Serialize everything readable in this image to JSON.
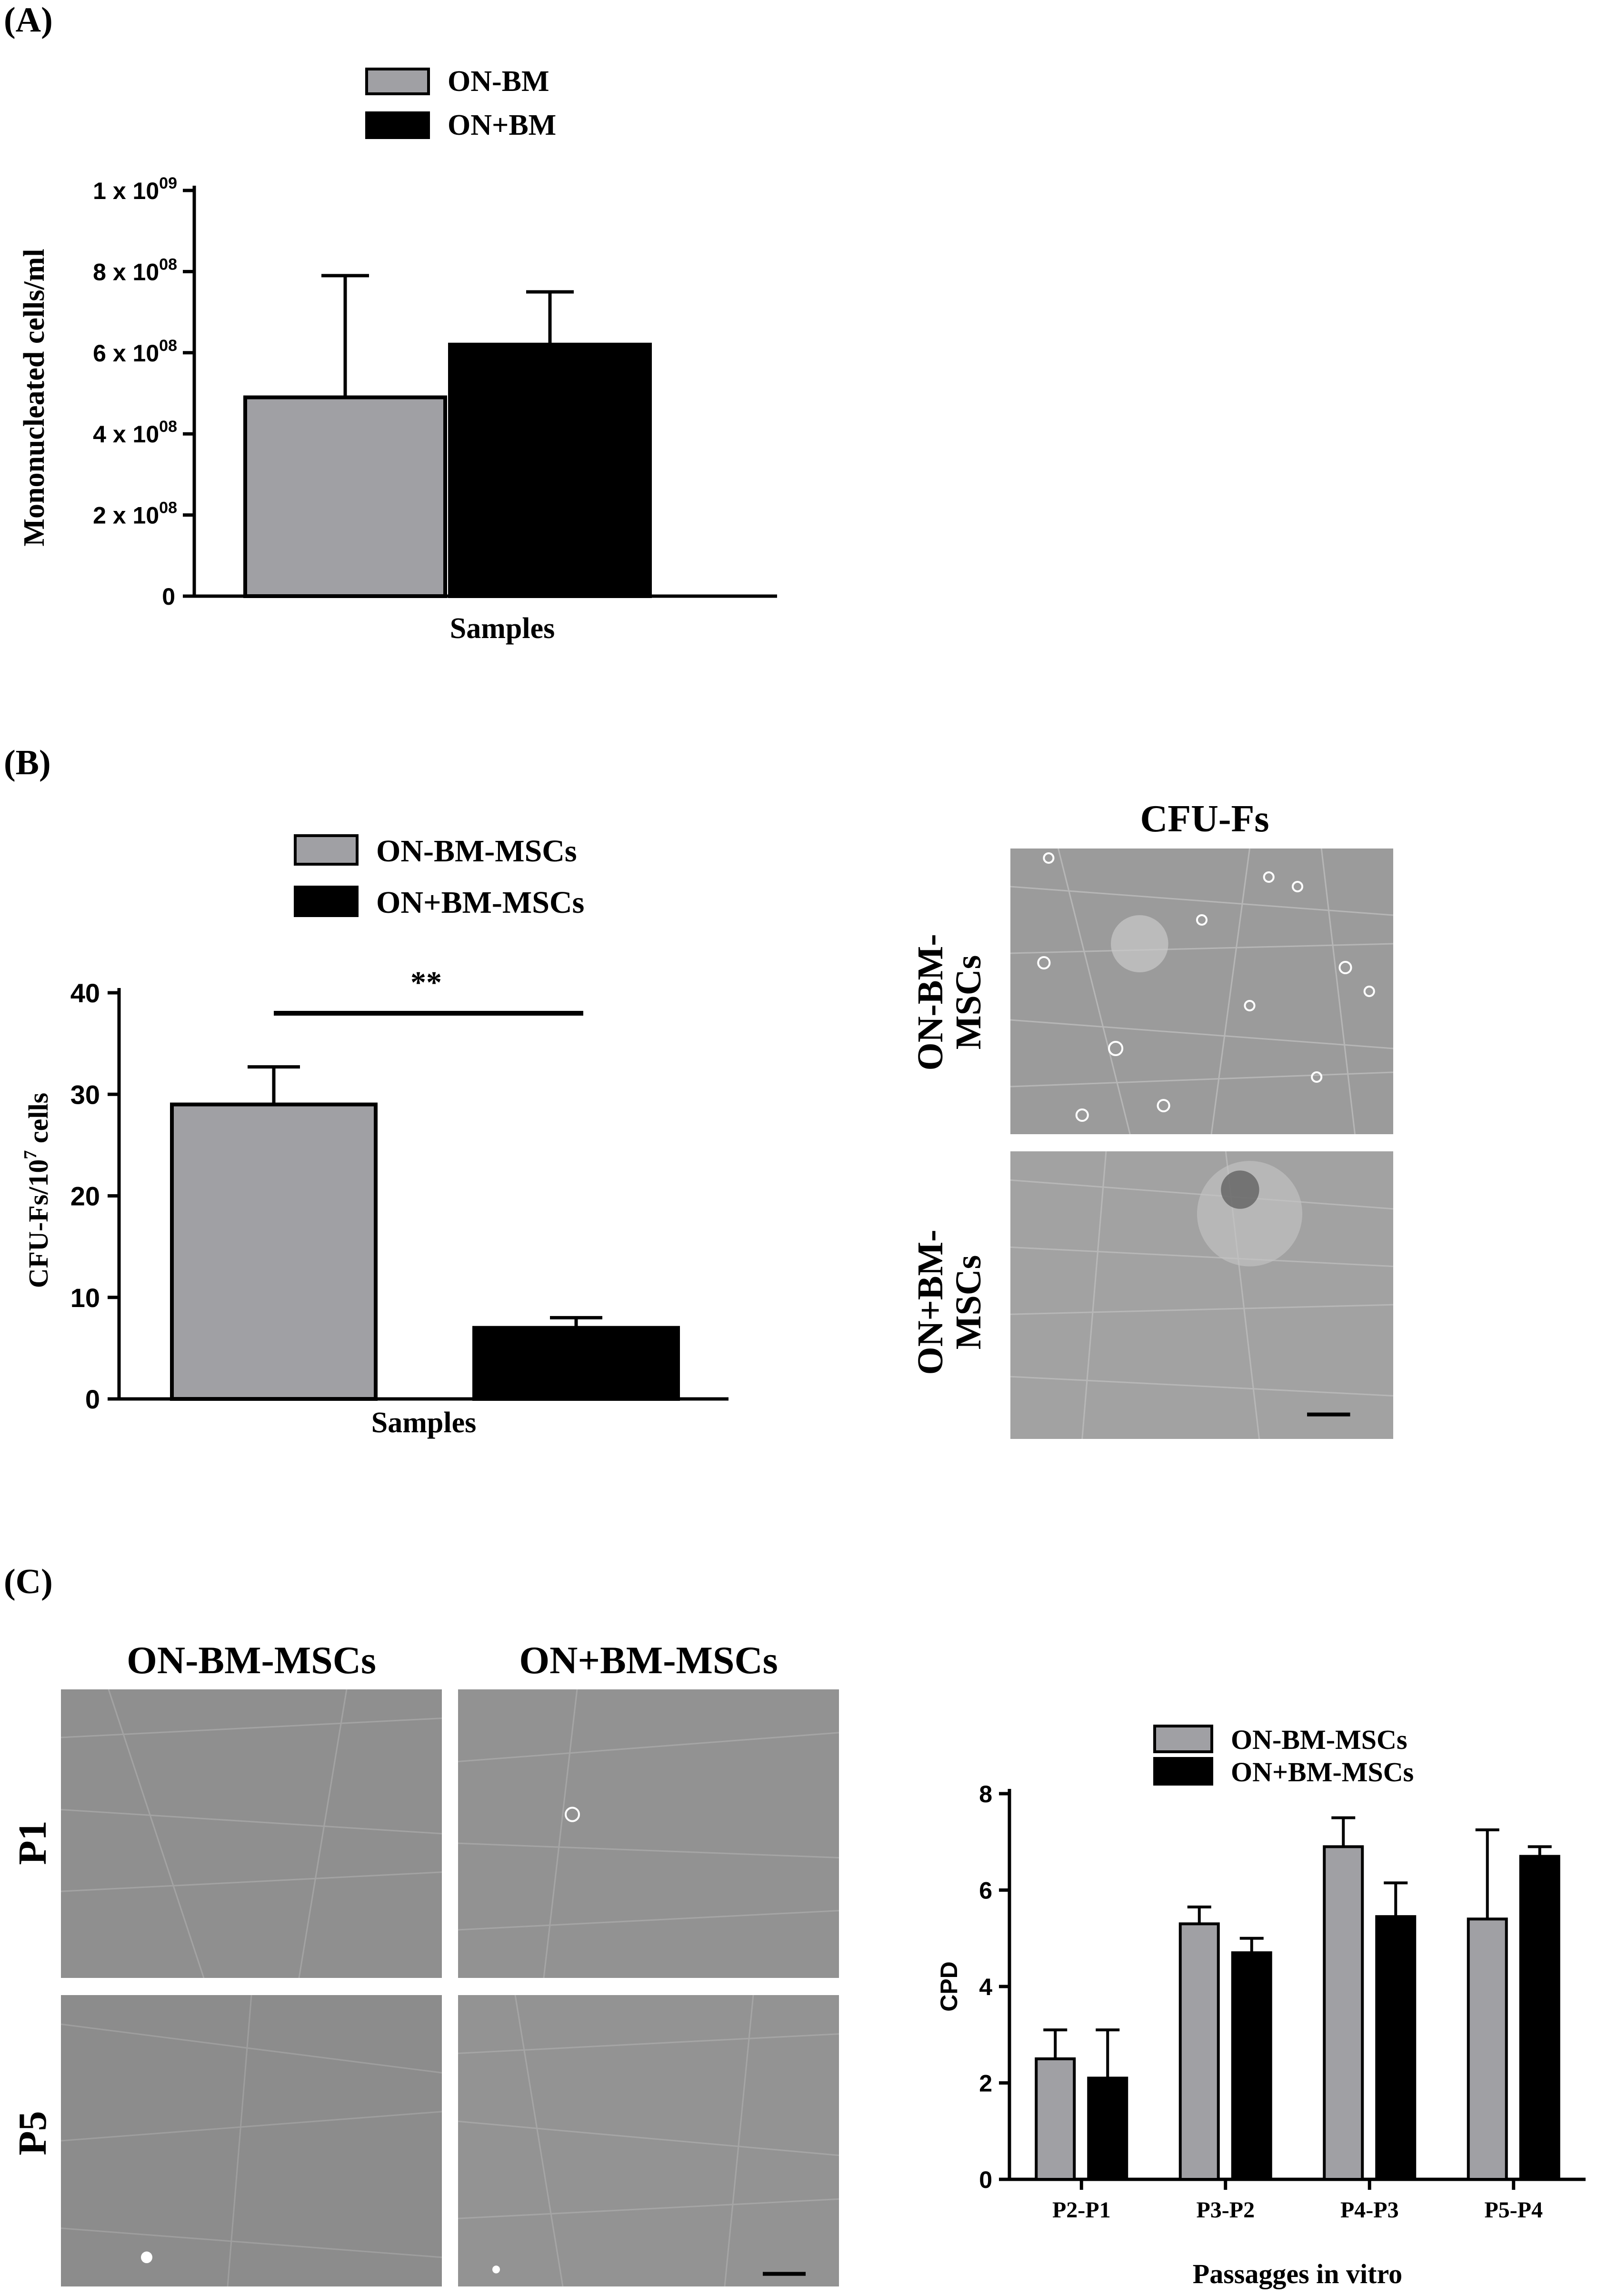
{
  "panels": {
    "A": {
      "label": "(A)"
    },
    "B": {
      "label": "(B)",
      "image_title": "CFU-Fs",
      "row_labels": [
        "ON-BM-\nMSCs",
        "ON+BM-\nMSCs"
      ]
    },
    "C": {
      "label": "(C)",
      "column_labels": [
        "ON-BM-MSCs",
        "ON+BM-MSCs"
      ],
      "row_labels": [
        "P1",
        "P5"
      ]
    }
  },
  "colors": {
    "gray": "#a0a0a4",
    "black": "#000000"
  },
  "chart_data": [
    {
      "id": "A",
      "type": "bar",
      "categories": [
        "Samples"
      ],
      "series": [
        {
          "name": "ON-BM",
          "value": 490000000,
          "error": 300000000,
          "color": "#a0a0a4"
        },
        {
          "name": "ON+BM",
          "value": 620000000,
          "error": 130000000,
          "color": "#000000"
        }
      ],
      "xlabel": "Samples",
      "ylabel": "Mononucleated cells/ml",
      "ylim": [
        0,
        1000000000
      ],
      "yticks": [
        {
          "value": 0,
          "label": "0"
        },
        {
          "value": 200000000,
          "label": "2 x 10",
          "exp": "08"
        },
        {
          "value": 400000000,
          "label": "4 x 10",
          "exp": "08"
        },
        {
          "value": 600000000,
          "label": "6 x 10",
          "exp": "08"
        },
        {
          "value": 800000000,
          "label": "8 x 10",
          "exp": "08"
        },
        {
          "value": 1000000000,
          "label": "1 x 10",
          "exp": "09"
        }
      ],
      "legend": "top"
    },
    {
      "id": "B",
      "type": "bar",
      "categories": [
        "Samples"
      ],
      "series": [
        {
          "name": "ON-BM-MSCs",
          "value": 29,
          "error": 3.7,
          "color": "#a0a0a4"
        },
        {
          "name": "ON+BM-MSCs",
          "value": 7,
          "error": 1,
          "color": "#000000"
        }
      ],
      "xlabel": "Samples",
      "ylabel": "CFU-Fs/10",
      "ylabel_exp": "7",
      "ylabel_tail": " cells",
      "ylim": [
        0,
        40
      ],
      "yticks": [
        0,
        10,
        20,
        30,
        40
      ],
      "annotation": "**",
      "legend": "top"
    },
    {
      "id": "C",
      "type": "bar",
      "categories": [
        "P2-P1",
        "P3-P2",
        "P4-P3",
        "P5-P4"
      ],
      "series": [
        {
          "name": "ON-BM-MSCs",
          "values": [
            2.5,
            5.3,
            6.9,
            5.4
          ],
          "errors": [
            0.6,
            0.35,
            0.6,
            1.85
          ],
          "color": "#a0a0a4"
        },
        {
          "name": "ON+BM-MSCs",
          "values": [
            2.1,
            4.7,
            5.45,
            6.7
          ],
          "errors": [
            1.0,
            0.3,
            0.7,
            0.2
          ],
          "color": "#000000"
        }
      ],
      "xlabel": "Passagges in vitro",
      "ylabel": "CPD",
      "ylim": [
        0,
        8
      ],
      "yticks": [
        0,
        2,
        4,
        6,
        8
      ],
      "legend": "top"
    }
  ]
}
